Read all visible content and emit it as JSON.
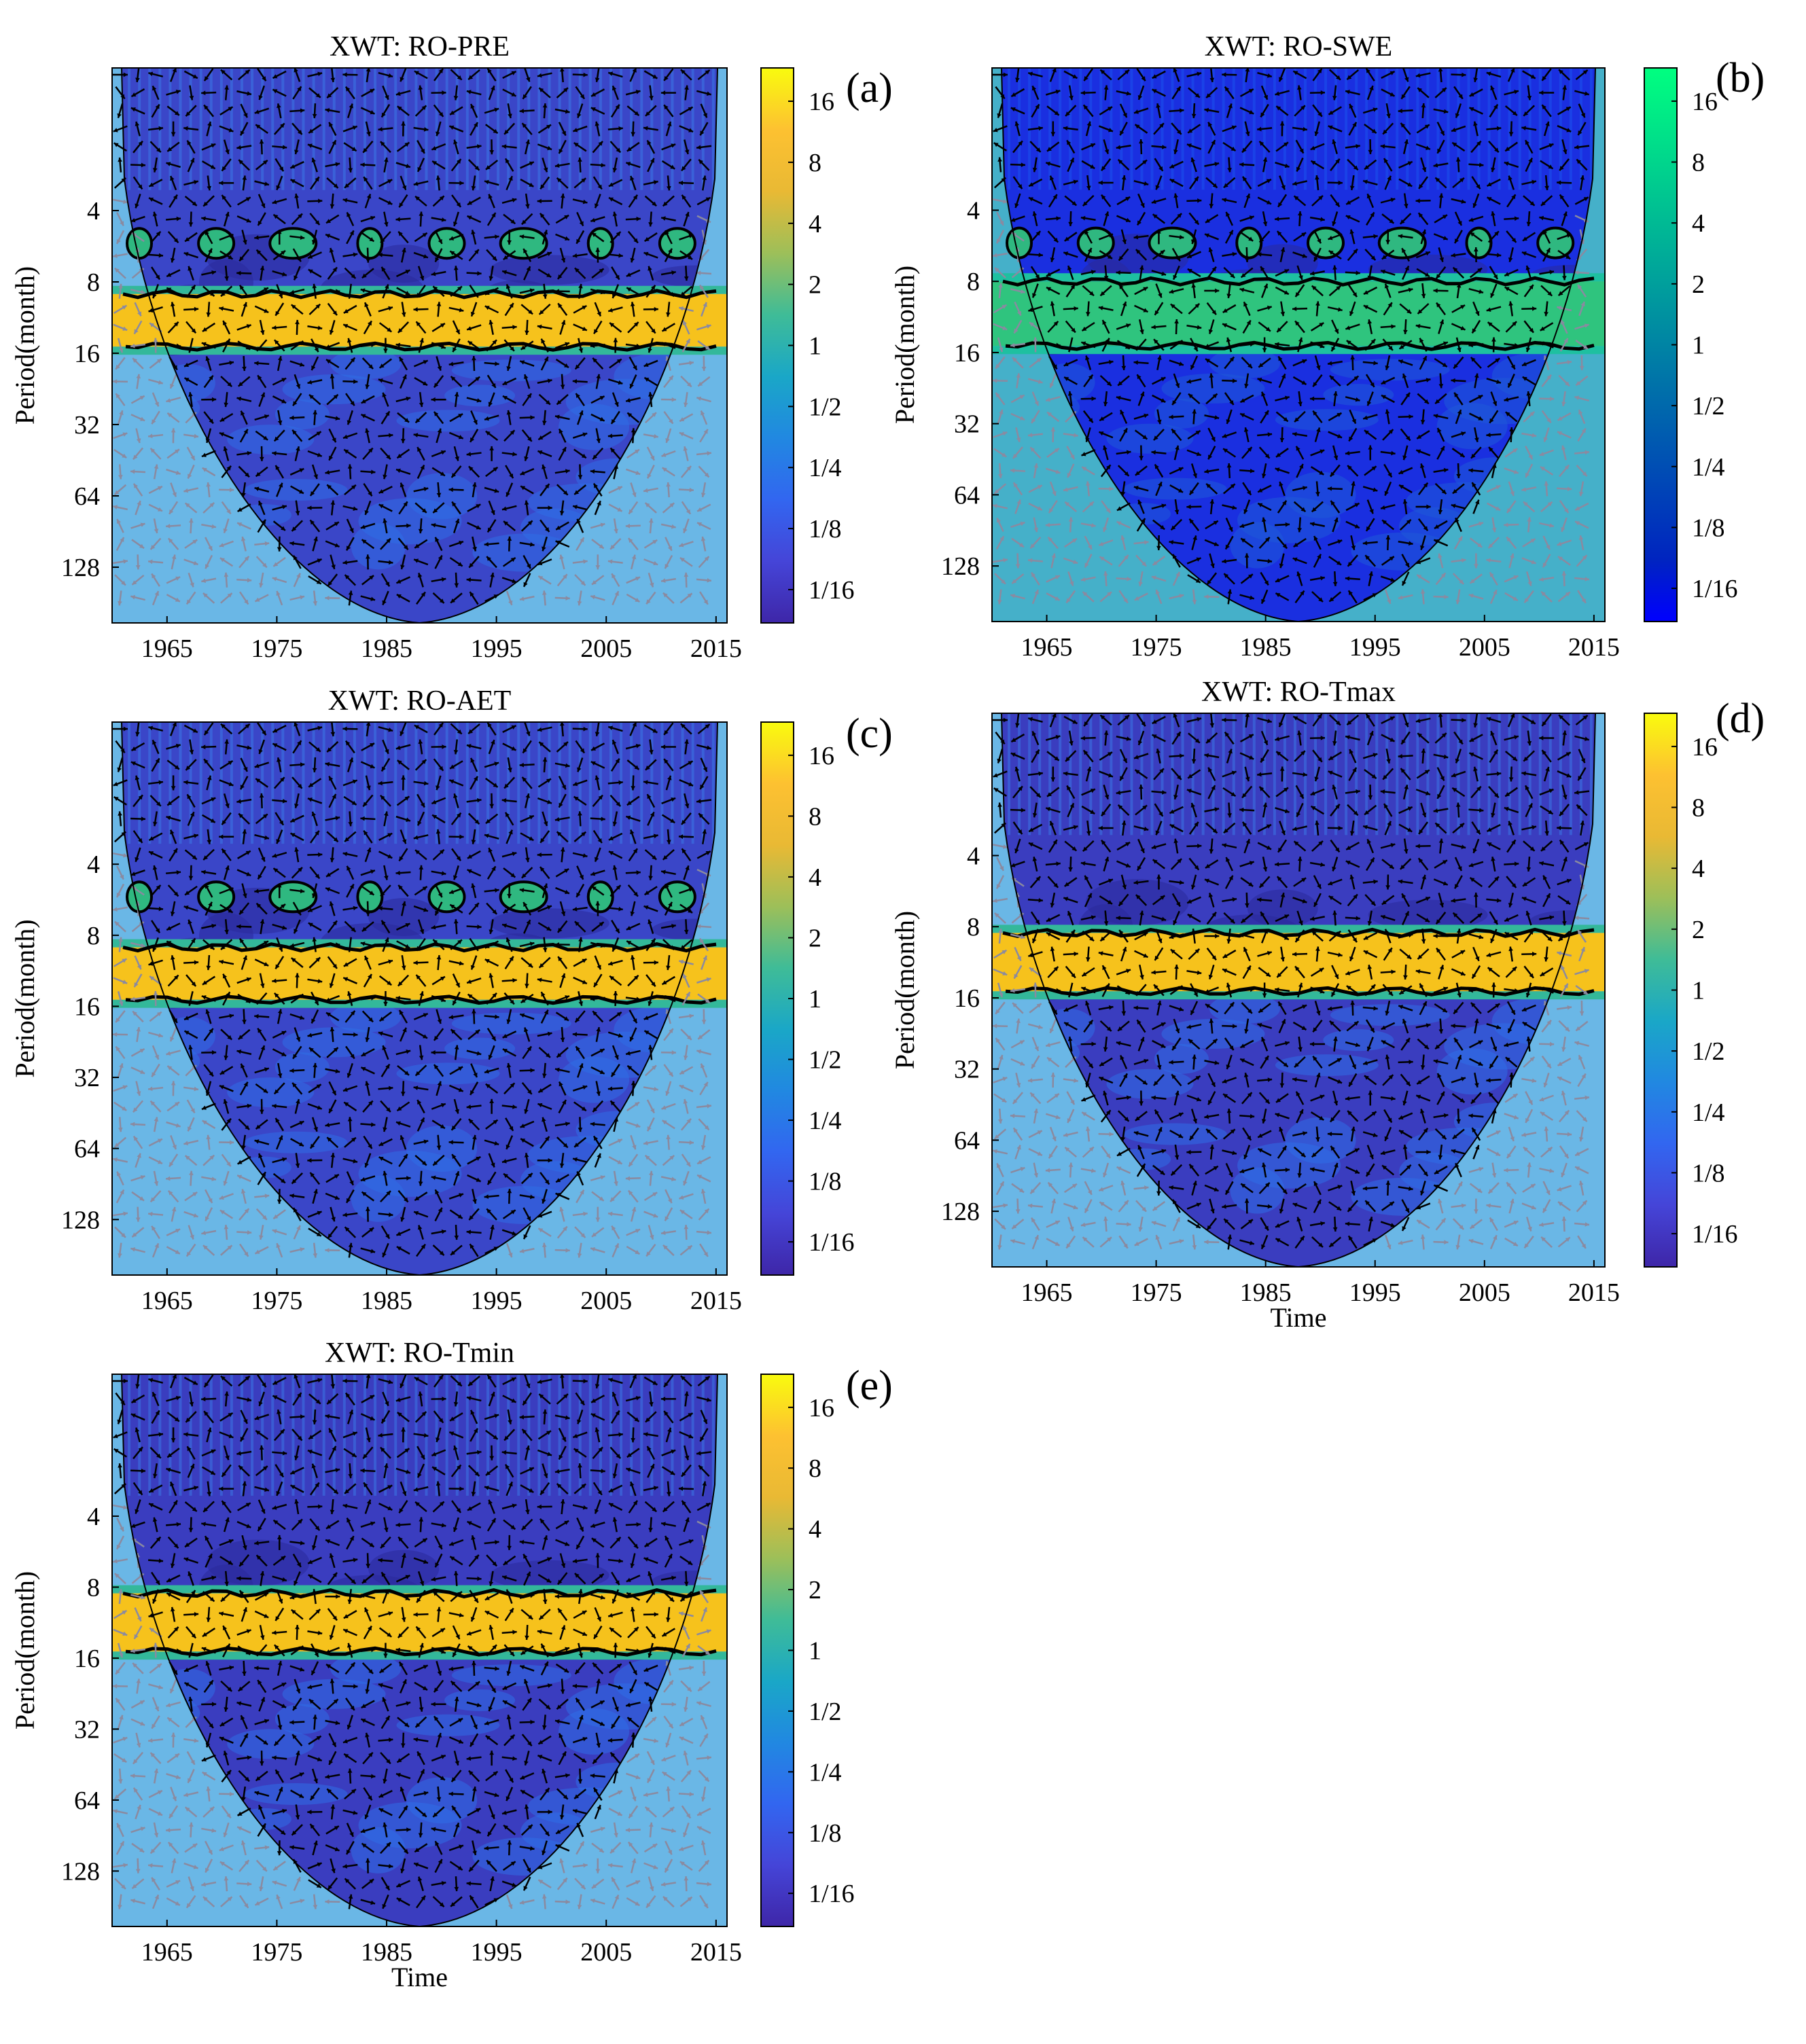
{
  "figure": {
    "type": "heatmap",
    "colorbar_ticks": [
      "16",
      "8",
      "4",
      "2",
      "1",
      "1/2",
      "1/4",
      "1/8",
      "1/16"
    ],
    "x_ticks": [
      "1965",
      "1975",
      "1985",
      "1995",
      "2005",
      "2015"
    ],
    "y_ticks": [
      "4",
      "8",
      "16",
      "32",
      "64",
      "128"
    ]
  },
  "chart_data": [
    {
      "type": "heatmap",
      "panel": "(a)",
      "title": "XWT: RO-PRE",
      "xlabel": "",
      "ylabel": "Period(month)",
      "xlim": [
        1960,
        2016
      ],
      "ylim_period": [
        1,
        220
      ],
      "band_period": [
        9,
        15
      ],
      "band_color": "#f6c21c",
      "background_color": "#3a46c8",
      "coi_color": "#6ab7e6",
      "palette": "parula"
    },
    {
      "type": "heatmap",
      "panel": "(b)",
      "title": "XWT: RO-SWE",
      "xlabel": "",
      "ylabel": "Period(month)",
      "xlim": [
        1960,
        2016
      ],
      "ylim_period": [
        1,
        220
      ],
      "band_period": [
        8,
        15
      ],
      "band_color": "#2fc47e",
      "background_color": "#1a2fe0",
      "coi_color": "#45b0c9",
      "palette": "winter"
    },
    {
      "type": "heatmap",
      "panel": "(c)",
      "title": "XWT: RO-AET",
      "xlabel": "",
      "ylabel": "Period(month)",
      "xlim": [
        1960,
        2016
      ],
      "ylim_period": [
        1,
        220
      ],
      "band_period": [
        9,
        15
      ],
      "band_color": "#f6c21c",
      "background_color": "#3a46c8",
      "coi_color": "#6ab7e6",
      "palette": "parula"
    },
    {
      "type": "heatmap",
      "panel": "(d)",
      "title": "XWT: RO-Tmax",
      "xlabel": "Time",
      "ylabel": "Period(month)",
      "xlim": [
        1960,
        2016
      ],
      "ylim_period": [
        1,
        220
      ],
      "band_period": [
        8.5,
        15
      ],
      "band_color": "#f6c21c",
      "background_color": "#3a3dbf",
      "coi_color": "#6ab7e6",
      "palette": "parula"
    },
    {
      "type": "heatmap",
      "panel": "(e)",
      "title": "XWT: RO-Tmin",
      "xlabel": "Time",
      "ylabel": "Period(month)",
      "xlim": [
        1960,
        2016
      ],
      "ylim_period": [
        1,
        220
      ],
      "band_period": [
        8.5,
        15
      ],
      "band_color": "#f6c21c",
      "background_color": "#3a3dbf",
      "coi_color": "#6ab7e6",
      "palette": "parula"
    }
  ]
}
